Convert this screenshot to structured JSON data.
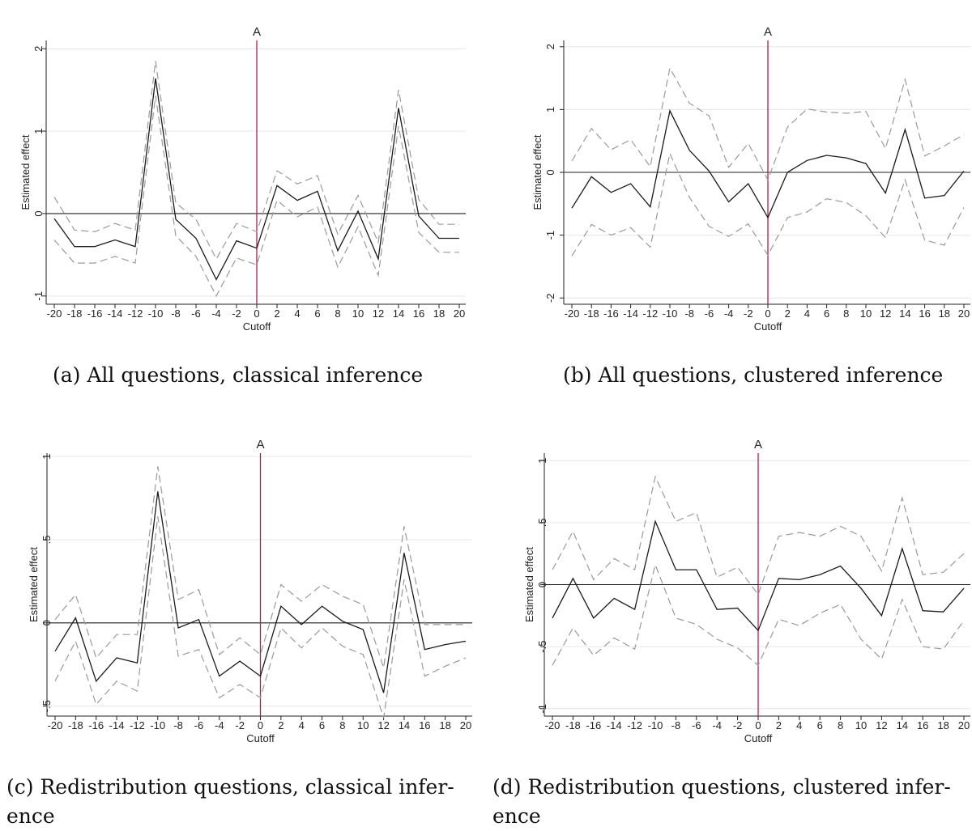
{
  "chart_data": [
    {
      "type": "line",
      "caption": "(a) All questions, classical inference",
      "xlabel": "Cutoff",
      "ylabel": "Estimated effect",
      "x": [
        -20,
        -18,
        -16,
        -14,
        -12,
        -10,
        -8,
        -6,
        -4,
        -2,
        0,
        2,
        4,
        6,
        8,
        10,
        12,
        14,
        16,
        18,
        20
      ],
      "xticks": [
        "-20",
        "-18",
        "-16",
        "-14",
        "-12",
        "-10",
        "-8",
        "-6",
        "-4",
        "-2",
        "0",
        "2",
        "4",
        "6",
        "8",
        "10",
        "12",
        "14",
        "16",
        "18",
        "20"
      ],
      "yticks": [
        {
          "v": -1,
          "label": "-1"
        },
        {
          "v": 0,
          "label": "0"
        },
        {
          "v": 1,
          "label": "1"
        },
        {
          "v": 2,
          "label": "2"
        }
      ],
      "ylim": [
        -1.1,
        2.1
      ],
      "vline": {
        "x": 0,
        "label": "A",
        "color": "#b01e4e"
      },
      "hline": 0,
      "series": [
        {
          "role": "estimate",
          "values": [
            -0.06,
            -0.4,
            -0.4,
            -0.32,
            -0.4,
            1.64,
            -0.07,
            -0.3,
            -0.8,
            -0.33,
            -0.42,
            0.34,
            0.16,
            0.27,
            -0.45,
            0.03,
            -0.55,
            1.28,
            -0.03,
            -0.3,
            -0.3
          ]
        },
        {
          "role": "upper",
          "values": [
            0.2,
            -0.2,
            -0.22,
            -0.12,
            -0.2,
            1.85,
            0.13,
            -0.07,
            -0.55,
            -0.12,
            -0.22,
            0.52,
            0.36,
            0.46,
            -0.25,
            0.22,
            -0.35,
            1.5,
            0.17,
            -0.13,
            -0.13
          ]
        },
        {
          "role": "lower",
          "values": [
            -0.32,
            -0.6,
            -0.6,
            -0.52,
            -0.6,
            1.43,
            -0.27,
            -0.52,
            -1.0,
            -0.54,
            -0.62,
            0.16,
            -0.04,
            0.08,
            -0.65,
            -0.16,
            -0.75,
            1.06,
            -0.23,
            -0.47,
            -0.47
          ]
        }
      ],
      "grid": true
    },
    {
      "type": "line",
      "caption": "(b) All questions, clustered inference",
      "xlabel": "Cutoff",
      "ylabel": "Estimated effect",
      "x": [
        -20,
        -18,
        -16,
        -14,
        -12,
        -10,
        -8,
        -6,
        -4,
        -2,
        0,
        2,
        4,
        6,
        8,
        10,
        12,
        14,
        16,
        18,
        20
      ],
      "xticks": [
        "-20",
        "-18",
        "-16",
        "-14",
        "-12",
        "-10",
        "-8",
        "-6",
        "-4",
        "-2",
        "0",
        "2",
        "4",
        "6",
        "8",
        "10",
        "12",
        "14",
        "16",
        "18",
        "20"
      ],
      "yticks": [
        {
          "v": -2,
          "label": "-2"
        },
        {
          "v": -1,
          "label": "-1"
        },
        {
          "v": 0,
          "label": "0"
        },
        {
          "v": 1,
          "label": "1"
        },
        {
          "v": 2,
          "label": "2"
        }
      ],
      "ylim": [
        -2.1,
        2.1
      ],
      "vline": {
        "x": 0,
        "label": "A",
        "color": "#b01e4e"
      },
      "hline": 0,
      "series": [
        {
          "role": "estimate",
          "values": [
            -0.57,
            -0.07,
            -0.32,
            -0.18,
            -0.55,
            0.98,
            0.35,
            0.02,
            -0.47,
            -0.18,
            -0.72,
            0.0,
            0.19,
            0.27,
            0.23,
            0.14,
            -0.33,
            0.68,
            -0.41,
            -0.37,
            0.02
          ]
        },
        {
          "role": "upper",
          "values": [
            0.18,
            0.7,
            0.36,
            0.52,
            0.09,
            1.66,
            1.1,
            0.9,
            0.08,
            0.46,
            -0.12,
            0.72,
            1.01,
            0.96,
            0.94,
            0.97,
            0.38,
            1.48,
            0.26,
            0.42,
            0.6
          ]
        },
        {
          "role": "lower",
          "values": [
            -1.33,
            -0.83,
            -1.0,
            -0.88,
            -1.19,
            0.3,
            -0.4,
            -0.86,
            -1.02,
            -0.82,
            -1.32,
            -0.72,
            -0.63,
            -0.42,
            -0.48,
            -0.69,
            -1.04,
            -0.12,
            -1.08,
            -1.16,
            -0.56
          ]
        }
      ],
      "grid": true
    },
    {
      "type": "line",
      "caption": "(c) Redistribution questions, classical infer-\nence",
      "xlabel": "Cutoff",
      "ylabel": "Estimated effect",
      "x": [
        -20,
        -18,
        -16,
        -14,
        -12,
        -10,
        -8,
        -6,
        -4,
        -2,
        0,
        2,
        4,
        6,
        8,
        10,
        12,
        14,
        16,
        18,
        20
      ],
      "xticks": [
        "-20",
        "-18",
        "-16",
        "-14",
        "-12",
        "-10",
        "-8",
        "-6",
        "-4",
        "-2",
        "0",
        "2",
        "4",
        "6",
        "8",
        "10",
        "12",
        "14",
        "16",
        "18",
        "20"
      ],
      "yticks": [
        {
          "v": -0.5,
          "label": "-.5"
        },
        {
          "v": 0,
          "label": "0"
        },
        {
          "v": 0.5,
          "label": ".5"
        },
        {
          "v": 1,
          "label": "1"
        }
      ],
      "ylim": [
        -0.56,
        1.02
      ],
      "vline": {
        "x": 0,
        "label": "A",
        "color": "#b01e4e"
      },
      "hline": 0,
      "series": [
        {
          "role": "estimate",
          "values": [
            -0.17,
            0.03,
            -0.35,
            -0.21,
            -0.24,
            0.79,
            -0.03,
            0.02,
            -0.32,
            -0.23,
            -0.32,
            0.1,
            -0.01,
            0.1,
            0.01,
            -0.04,
            -0.42,
            0.42,
            -0.16,
            -0.13,
            -0.11
          ]
        },
        {
          "role": "upper",
          "values": [
            0.02,
            0.17,
            -0.21,
            -0.07,
            -0.07,
            0.94,
            0.14,
            0.2,
            -0.19,
            -0.09,
            -0.19,
            0.23,
            0.13,
            0.23,
            0.16,
            0.11,
            -0.27,
            0.58,
            -0.01,
            -0.01,
            -0.01
          ]
        },
        {
          "role": "lower",
          "values": [
            -0.35,
            -0.11,
            -0.49,
            -0.35,
            -0.41,
            0.64,
            -0.2,
            -0.16,
            -0.45,
            -0.37,
            -0.45,
            -0.03,
            -0.15,
            -0.03,
            -0.14,
            -0.19,
            -0.57,
            0.26,
            -0.32,
            -0.26,
            -0.21
          ]
        }
      ],
      "grid": true
    },
    {
      "type": "line",
      "caption": "(d) Redistribution questions, clustered infer-\nence",
      "xlabel": "Cutoff",
      "ylabel": "Estimated effect",
      "x": [
        -20,
        -18,
        -16,
        -14,
        -12,
        -10,
        -8,
        -6,
        -4,
        -2,
        0,
        2,
        4,
        6,
        8,
        10,
        12,
        14,
        16,
        18,
        20
      ],
      "xticks": [
        "-20",
        "-18",
        "-16",
        "-14",
        "-12",
        "-10",
        "-8",
        "-6",
        "-4",
        "-2",
        "0",
        "2",
        "4",
        "6",
        "8",
        "10",
        "12",
        "14",
        "16",
        "18",
        "20"
      ],
      "yticks": [
        {
          "v": -1,
          "label": "-1"
        },
        {
          "v": -0.5,
          "label": "-.5"
        },
        {
          "v": 0,
          "label": "0"
        },
        {
          "v": 0.5,
          "label": ".5"
        },
        {
          "v": 1,
          "label": "1"
        }
      ],
      "ylim": [
        -1.06,
        1.06
      ],
      "vline": {
        "x": 0,
        "label": "A",
        "color": "#b01e4e"
      },
      "hline": 0,
      "series": [
        {
          "role": "estimate",
          "values": [
            -0.27,
            0.05,
            -0.27,
            -0.11,
            -0.2,
            0.51,
            0.12,
            0.12,
            -0.2,
            -0.19,
            -0.37,
            0.05,
            0.04,
            0.08,
            0.15,
            -0.03,
            -0.25,
            0.29,
            -0.21,
            -0.22,
            -0.03
          ]
        },
        {
          "role": "upper",
          "values": [
            0.12,
            0.43,
            0.04,
            0.21,
            0.12,
            0.87,
            0.51,
            0.58,
            0.06,
            0.14,
            -0.08,
            0.39,
            0.42,
            0.39,
            0.47,
            0.39,
            0.11,
            0.7,
            0.08,
            0.1,
            0.25
          ]
        },
        {
          "role": "lower",
          "values": [
            -0.65,
            -0.35,
            -0.57,
            -0.43,
            -0.52,
            0.16,
            -0.27,
            -0.32,
            -0.44,
            -0.51,
            -0.65,
            -0.28,
            -0.33,
            -0.23,
            -0.16,
            -0.44,
            -0.6,
            -0.12,
            -0.5,
            -0.52,
            -0.29
          ]
        }
      ],
      "grid": true
    }
  ]
}
